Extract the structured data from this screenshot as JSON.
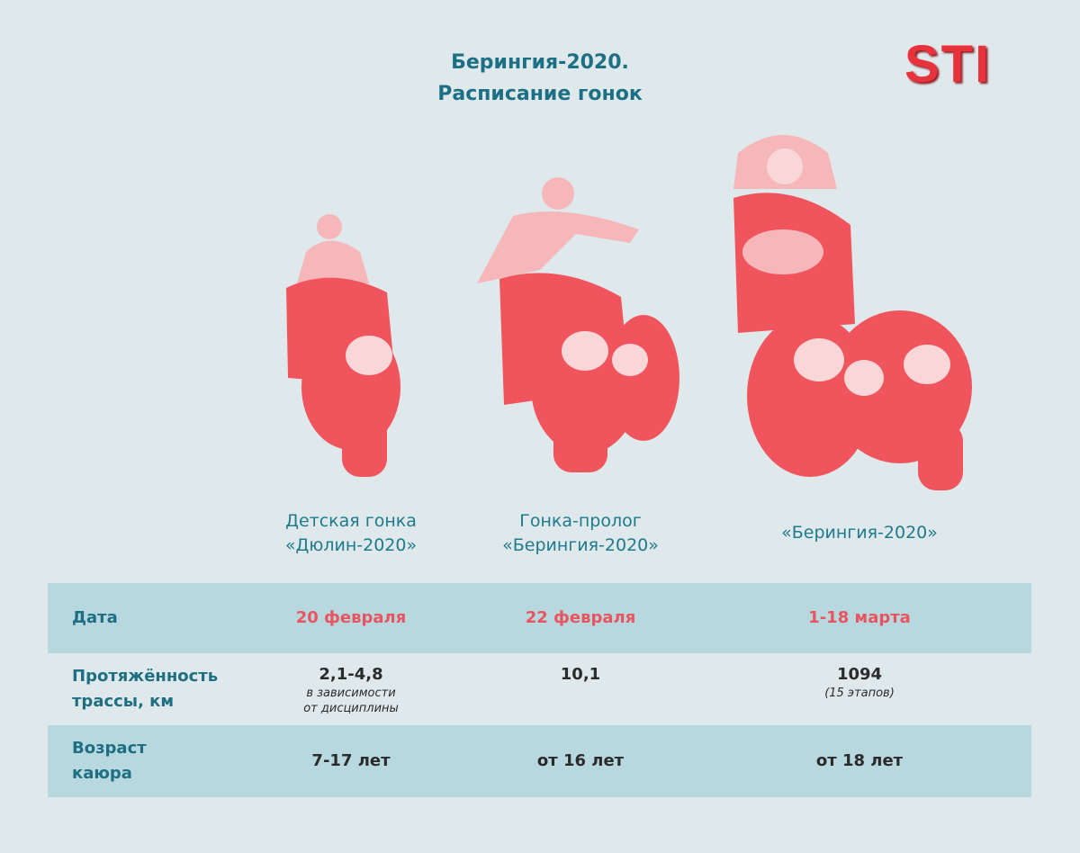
{
  "header": {
    "title": [
      "Берингия-2020.",
      "Расписание гонок"
    ],
    "logo": "STI"
  },
  "races": [
    {
      "name": [
        "Детская гонка",
        "«Дюлин-2020»"
      ]
    },
    {
      "name": [
        "Гонка-пролог",
        "«Берингия-2020»"
      ]
    },
    {
      "name": [
        "«Берингия-2020»"
      ]
    }
  ],
  "table": {
    "rows": [
      {
        "label": [
          "Дата"
        ],
        "cells": [
          {
            "main": "20 февраля"
          },
          {
            "main": "22 февраля"
          },
          {
            "main": "1-18 марта"
          }
        ]
      },
      {
        "label": [
          "Протяжённость",
          "трассы, км"
        ],
        "cells": [
          {
            "main": "2,1-4,8",
            "note": [
              "в зависимости",
              "от дисциплины"
            ]
          },
          {
            "main": "10,1"
          },
          {
            "main": "1094",
            "note": [
              "(15 этапов)"
            ]
          }
        ]
      },
      {
        "label": [
          "Возраст",
          "каюра"
        ],
        "cells": [
          {
            "main": "7-17 лет"
          },
          {
            "main": "от 16 лет"
          },
          {
            "main": "от 18 лет"
          }
        ]
      }
    ]
  }
}
